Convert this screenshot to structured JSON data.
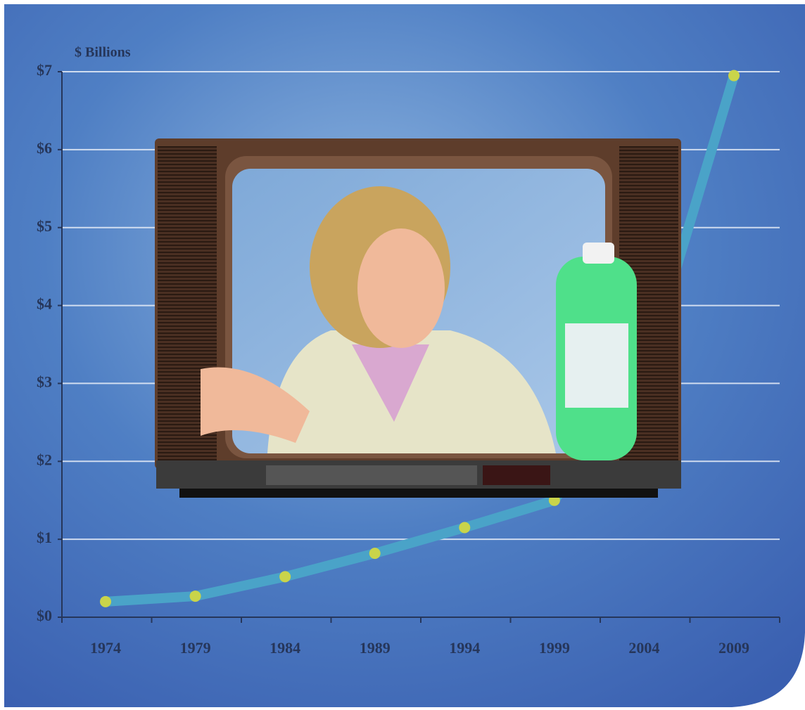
{
  "chart_data": {
    "type": "line",
    "y_axis_label": "$ Billions",
    "categories": [
      "1974",
      "1979",
      "1984",
      "1989",
      "1994",
      "1999",
      "2004",
      "2009"
    ],
    "values": [
      0.2,
      0.27,
      0.52,
      0.82,
      1.15,
      1.5,
      3.1,
      6.95
    ],
    "color": "#4aa3c8",
    "marker_color": "#c9d44a",
    "ylim": [
      0,
      7
    ],
    "yticks": [
      {
        "value": 0,
        "label": "$0"
      },
      {
        "value": 1,
        "label": "$1"
      },
      {
        "value": 2,
        "label": "$2"
      },
      {
        "value": 3,
        "label": "$3"
      },
      {
        "value": 4,
        "label": "$4"
      },
      {
        "value": 5,
        "label": "$5"
      },
      {
        "value": 6,
        "label": "$6"
      },
      {
        "value": 7,
        "label": "$7"
      }
    ],
    "grid": true
  }
}
